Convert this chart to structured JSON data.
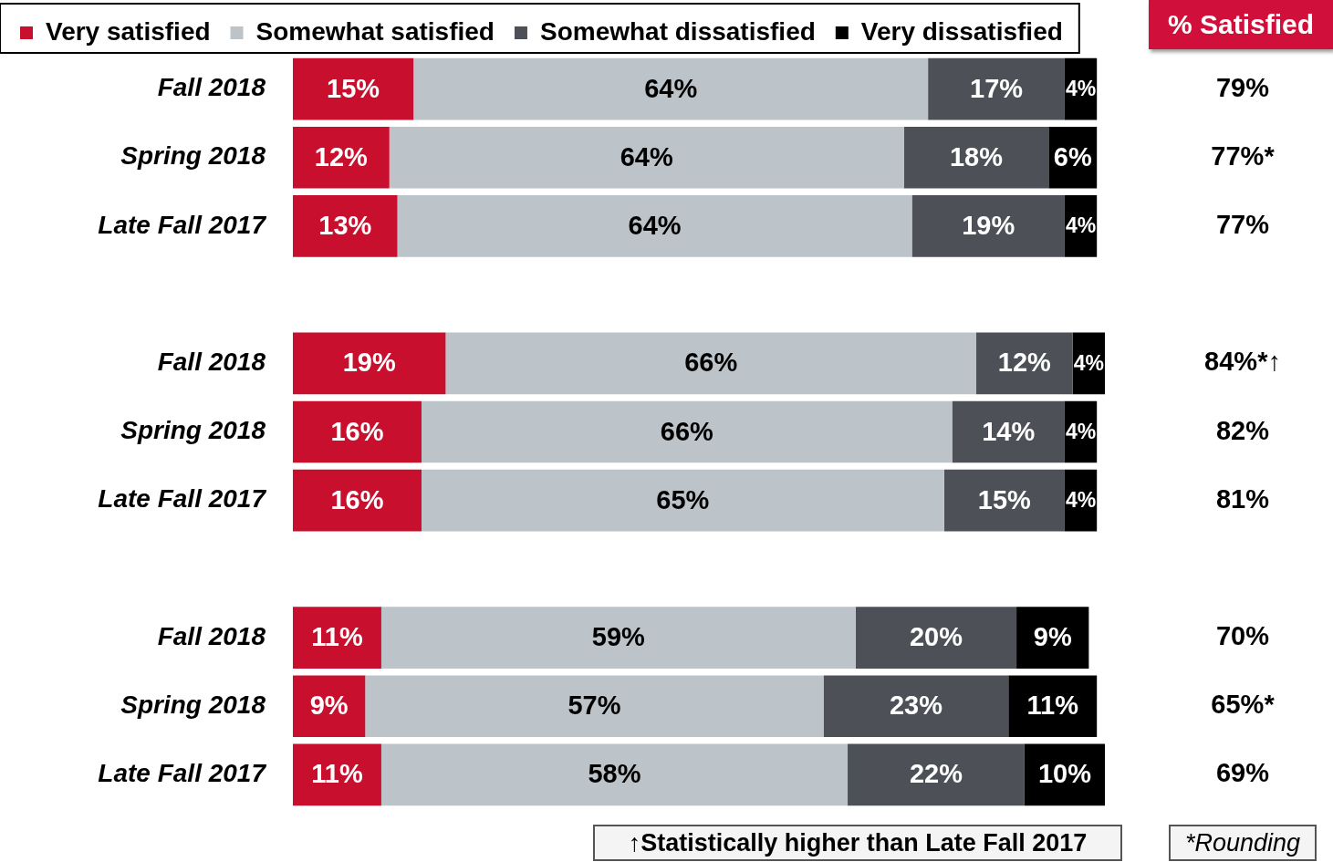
{
  "chart_data": {
    "type": "bar",
    "orientation": "horizontal",
    "stacked": true,
    "categories": [
      "Fall 2018",
      "Spring 2018",
      "Late Fall 2017",
      null,
      "Fall 2018",
      "Spring 2018",
      "Late Fall 2017",
      null,
      "Fall 2018",
      "Spring 2018",
      "Late Fall 2017"
    ],
    "series": [
      {
        "name": "Very satisfied",
        "color": "#c8102e",
        "values": [
          15,
          12,
          13,
          null,
          19,
          16,
          16,
          null,
          11,
          9,
          11
        ],
        "value_labels": [
          "15%",
          "12%",
          "13%",
          null,
          "19%",
          "16%",
          "16%",
          null,
          "11%",
          "9%",
          "11%"
        ]
      },
      {
        "name": "Somewhat satisfied",
        "color": "#bcc3c9",
        "values": [
          64,
          64,
          64,
          null,
          66,
          66,
          65,
          null,
          59,
          57,
          58
        ],
        "value_labels": [
          "64%",
          "64%",
          "64%",
          null,
          "66%",
          "66%",
          "65%",
          null,
          "59%",
          "57%",
          "58%"
        ]
      },
      {
        "name": "Somewhat dissatisfied",
        "color": "#4d5157",
        "values": [
          17,
          18,
          19,
          null,
          12,
          14,
          15,
          null,
          20,
          23,
          22
        ],
        "value_labels": [
          "17%",
          "18%",
          "19%",
          null,
          "12%",
          "14%",
          "15%",
          null,
          "20%",
          "23%",
          "22%"
        ]
      },
      {
        "name": "Very dissatisfied",
        "color": "#000000",
        "values": [
          4,
          6,
          4,
          null,
          4,
          4,
          4,
          null,
          9,
          11,
          10
        ],
        "value_labels": [
          "4%",
          "6%",
          "4%",
          null,
          "4%",
          "4%",
          "4%",
          null,
          "9%",
          "11%",
          "10%"
        ]
      }
    ],
    "xlim": [
      0,
      101
    ],
    "annotations": [
      "% Satisfied",
      "79%",
      "77%*",
      "77%",
      "84%*↑",
      "82%",
      "81%",
      "70%",
      "65%*",
      "69%",
      "↑Statistically higher than Late Fall 2017",
      "*Rounding"
    ],
    "tick_labels": "y",
    "legend": "top left"
  }
}
